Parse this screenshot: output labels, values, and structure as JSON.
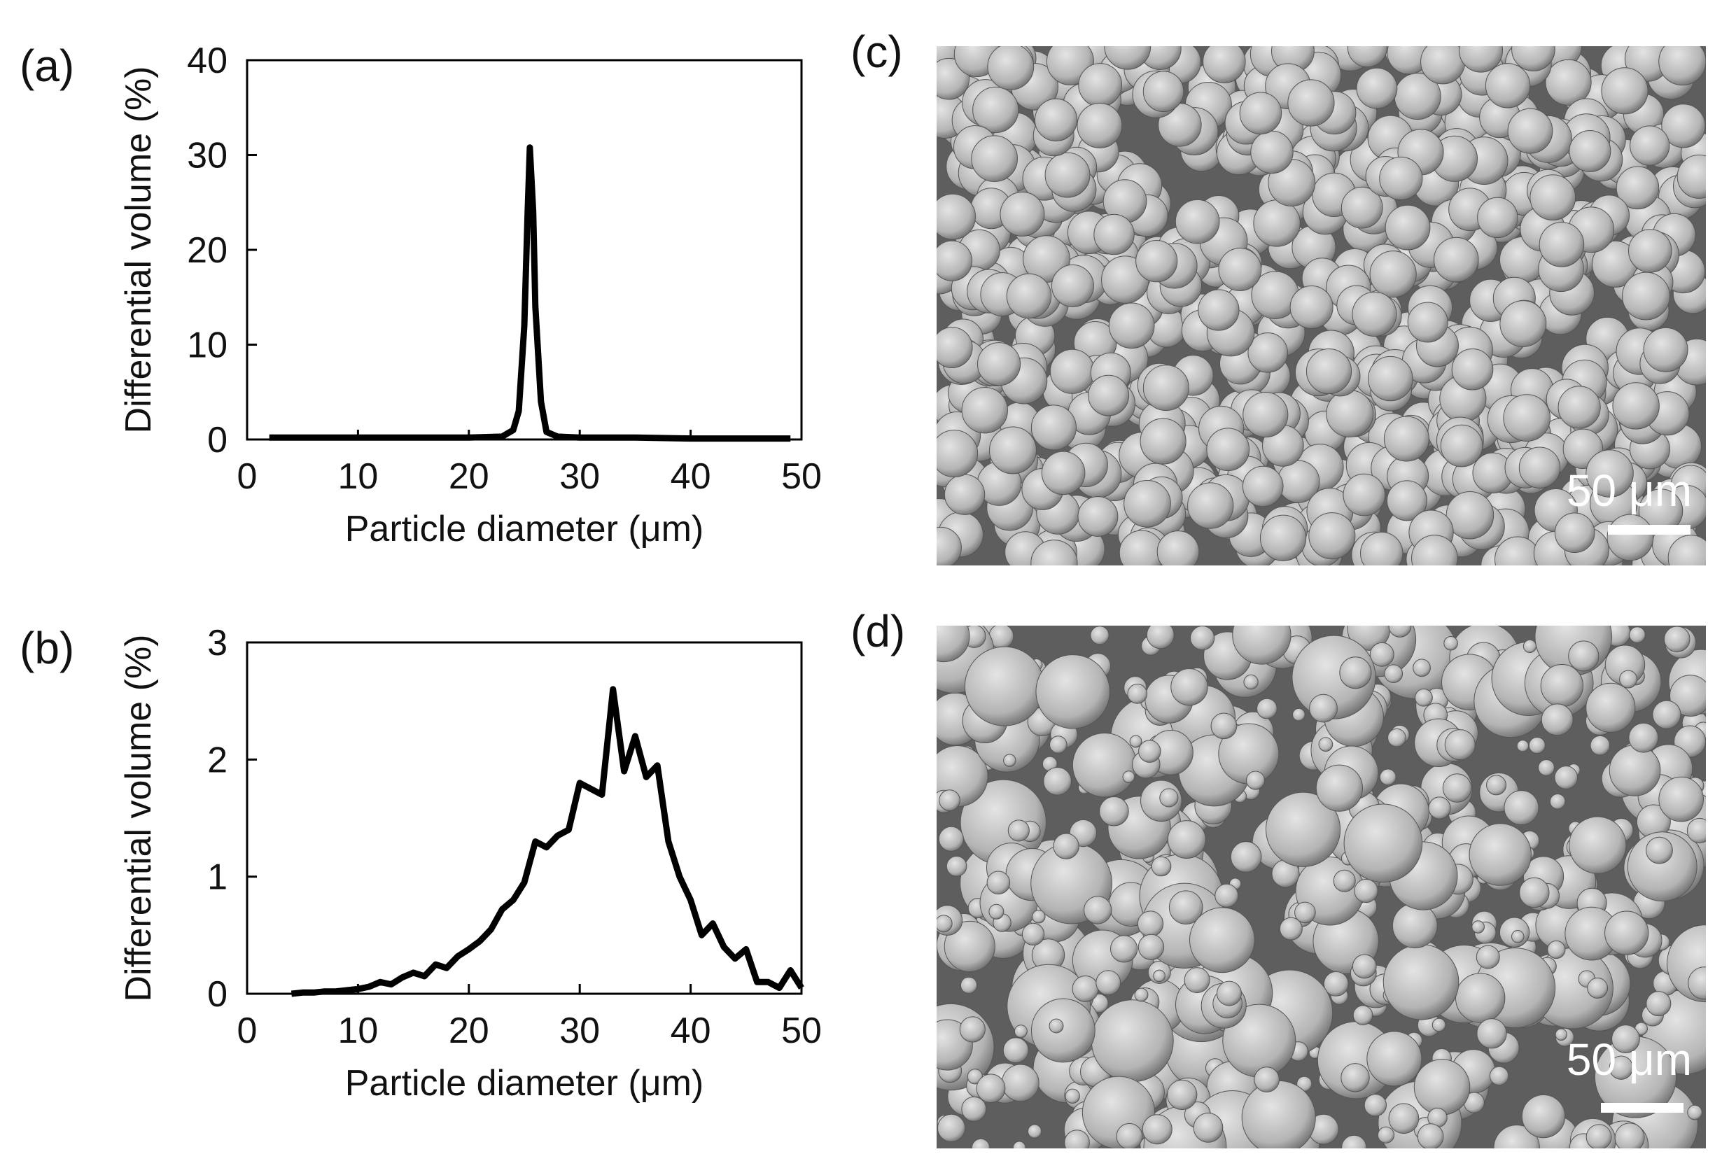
{
  "chart_data": [
    {
      "type": "line",
      "panel_label": "(a)",
      "xlabel": "Particle diameter (μm)",
      "ylabel": "Differential volume (%)",
      "x": [
        2,
        5,
        10,
        15,
        20,
        23,
        24,
        24.5,
        25,
        25.3,
        25.5,
        25.8,
        26,
        26.5,
        27,
        28,
        30,
        35,
        40,
        45,
        49
      ],
      "values": [
        0.2,
        0.2,
        0.2,
        0.2,
        0.2,
        0.3,
        1,
        3,
        12,
        24,
        30.8,
        24,
        14,
        4,
        0.8,
        0.3,
        0.2,
        0.2,
        0.1,
        0.1,
        0.1
      ],
      "color": "#000000",
      "xlim": [
        0,
        50
      ],
      "ylim": [
        0,
        40
      ],
      "xticks": [
        0,
        10,
        20,
        30,
        40,
        50
      ],
      "yticks": [
        0,
        10,
        20,
        30,
        40
      ]
    },
    {
      "type": "line",
      "panel_label": "(b)",
      "xlabel": "Particle diameter (μm)",
      "ylabel": "Differential volume (%)",
      "x": [
        4,
        5,
        6,
        7,
        8,
        9,
        10,
        11,
        12,
        13,
        14,
        15,
        16,
        17,
        18,
        19,
        20,
        21,
        22,
        23,
        24,
        25,
        26,
        27,
        28,
        29,
        30,
        31,
        32,
        33,
        34,
        35,
        36,
        37,
        38,
        39,
        40,
        41,
        42,
        43,
        44,
        45,
        46,
        47,
        48,
        49,
        50
      ],
      "values": [
        0,
        0.01,
        0.01,
        0.02,
        0.02,
        0.03,
        0.04,
        0.06,
        0.1,
        0.08,
        0.14,
        0.18,
        0.15,
        0.25,
        0.22,
        0.32,
        0.38,
        0.45,
        0.55,
        0.72,
        0.8,
        0.95,
        1.3,
        1.25,
        1.35,
        1.4,
        1.8,
        1.75,
        1.7,
        2.6,
        1.9,
        2.2,
        1.85,
        1.95,
        1.3,
        1.0,
        0.8,
        0.5,
        0.6,
        0.4,
        0.3,
        0.38,
        0.1,
        0.1,
        0.05,
        0.2,
        0.05
      ],
      "color": "#000000",
      "xlim": [
        0,
        50
      ],
      "ylim": [
        0,
        3
      ],
      "xticks": [
        0,
        10,
        20,
        30,
        40,
        50
      ],
      "yticks": [
        0,
        1,
        2,
        3
      ]
    }
  ],
  "images": [
    {
      "panel_label": "(c)",
      "scale_bar_label": "50 μm"
    },
    {
      "panel_label": "(d)",
      "scale_bar_label": "50 μm"
    }
  ]
}
